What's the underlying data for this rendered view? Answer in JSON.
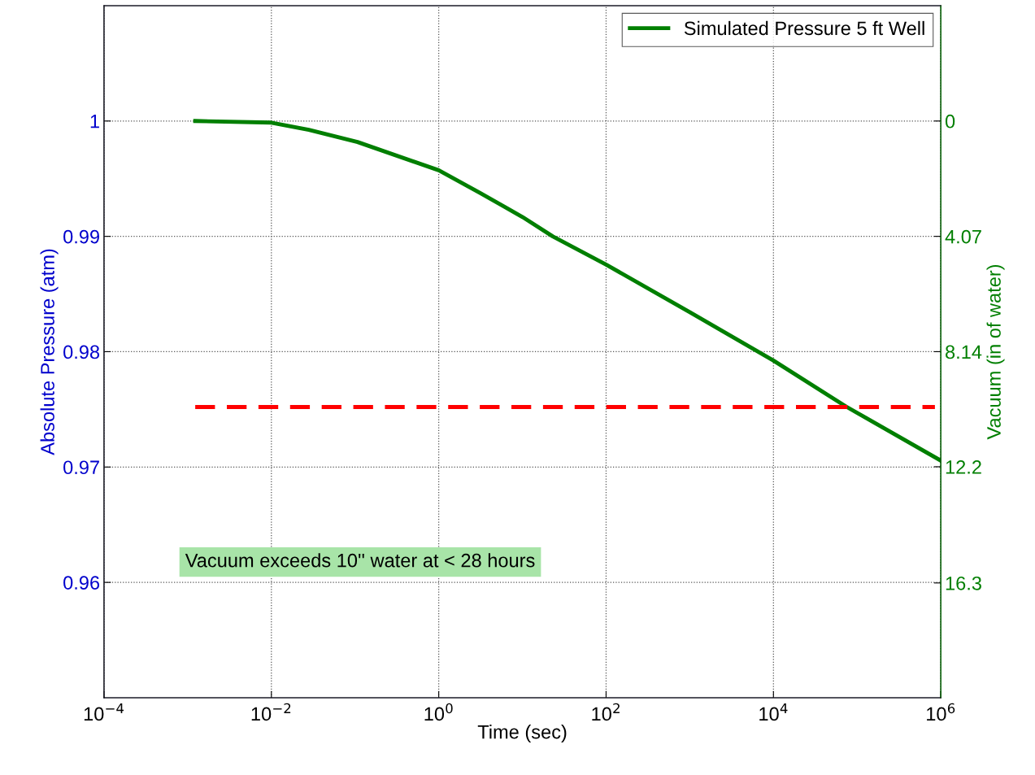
{
  "chart_data": {
    "type": "line",
    "xlabel": "Time (sec)",
    "ylabel": "Absolute Pressure (atm)",
    "y2label": "Vacuum (in of water)",
    "log": "x",
    "grid": true,
    "legend": "top right",
    "line_style": "solid",
    "marker": "none",
    "xlim": [
      0.0001,
      1000000
    ],
    "xticks": [
      {
        "value": 0.0001,
        "label": "10$^{−4}$"
      },
      {
        "value": 0.01,
        "label": "10$^{−2}$"
      },
      {
        "value": 1,
        "label": "10$^{0}$"
      },
      {
        "value": 100,
        "label": "10$^{2}$"
      },
      {
        "value": 10000,
        "label": "10$^{4}$"
      },
      {
        "value": 1000000,
        "label": "10$^{6}$"
      }
    ],
    "ylim": [
      0.95,
      1.01
    ],
    "yticks": [
      0.96,
      0.97,
      0.98,
      0.99,
      1
    ],
    "y2lim": [
      20.35,
      -4.07
    ],
    "y2ticks": [
      0,
      4.07,
      8.14,
      12.2,
      16.3
    ],
    "series": [
      {
        "name": "Simulated Pressure 5 ft Well",
        "color": "#007f00",
        "x": [
          0.00123,
          0.01,
          0.028,
          0.107,
          1,
          3.1,
          10,
          23,
          100,
          1000,
          10000,
          74000,
          1000000
        ],
        "values": [
          1.0,
          0.99986,
          0.99923,
          0.99818,
          0.99573,
          0.99378,
          0.99168,
          0.99,
          0.98755,
          0.98343,
          0.97923,
          0.97524,
          0.97056
        ]
      },
      {
        "type": "line",
        "color": "#ff0000",
        "line_style": "dashed",
        "x": [
          0.00123,
          850000
        ],
        "values": [
          0.9752,
          0.9752
        ]
      }
    ],
    "annotations": [
      "Vacuum exceeds 10'' water at < 28 hours"
    ]
  }
}
